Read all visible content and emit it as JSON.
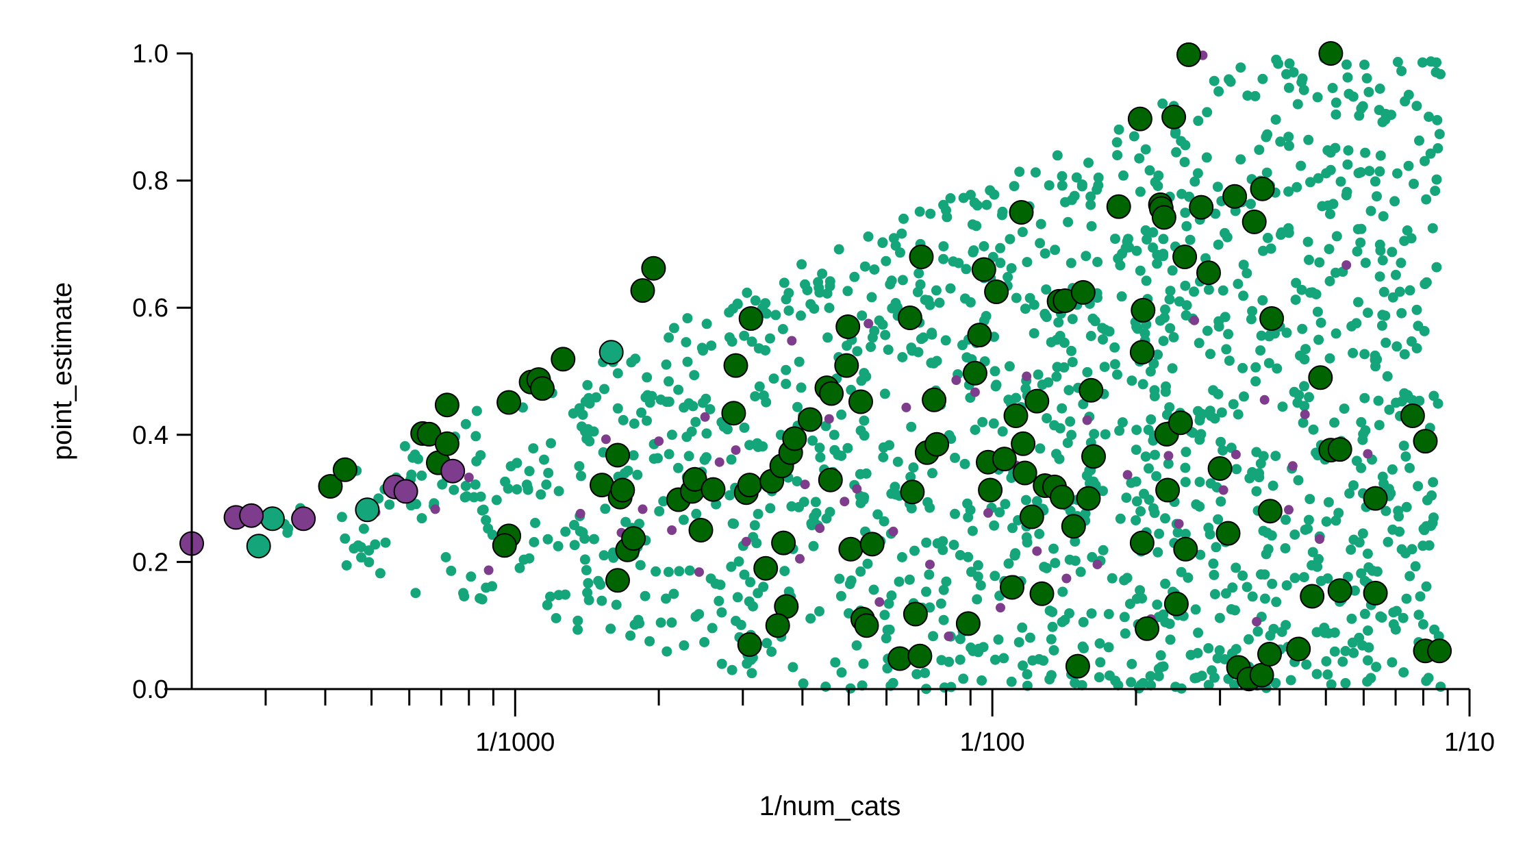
{
  "chart_data": {
    "type": "scatter",
    "title": "",
    "xlabel": "1/num_cats",
    "ylabel": "point_estimate",
    "xscale": "log",
    "xlim": [
      0.00021,
      0.1
    ],
    "ylim": [
      0,
      1
    ],
    "xticks": [
      {
        "value": 0.001,
        "label": "1/1000"
      },
      {
        "value": 0.01,
        "label": "1/100"
      },
      {
        "value": 0.1,
        "label": "1/10"
      }
    ],
    "yticks": [
      {
        "value": 0,
        "label": "0.0"
      },
      {
        "value": 0.2,
        "label": "0.2"
      },
      {
        "value": 0.4,
        "label": "0.4"
      },
      {
        "value": 0.6,
        "label": "0.6"
      },
      {
        "value": 0.8,
        "label": "0.8"
      },
      {
        "value": 1,
        "label": "1.0"
      }
    ],
    "grid": false,
    "legend": "none",
    "colors": {
      "light_green": "#14a57a",
      "purple": "#7d3c8c",
      "dark_green": "#006400",
      "edge": "#000000"
    },
    "series": [
      {
        "role": "large-dark-green-outlined",
        "color": "#006400",
        "points": [
          [
            0.00072,
            0.447
          ],
          [
            0.00064,
            0.402
          ],
          [
            0.00066,
            0.401
          ],
          [
            0.00069,
            0.356
          ],
          [
            0.00072,
            0.386
          ],
          [
            0.00041,
            0.319
          ],
          [
            0.00044,
            0.345
          ],
          [
            0.00097,
            0.451
          ],
          [
            0.00108,
            0.483
          ],
          [
            0.00112,
            0.487
          ],
          [
            0.00114,
            0.473
          ],
          [
            0.00126,
            0.519
          ],
          [
            0.00185,
            0.627
          ],
          [
            0.00195,
            0.662
          ],
          [
            0.00097,
            0.241
          ],
          [
            0.00095,
            0.226
          ],
          [
            0.00152,
            0.321
          ],
          [
            0.00164,
            0.368
          ],
          [
            0.00166,
            0.302
          ],
          [
            0.00168,
            0.313
          ],
          [
            0.00172,
            0.219
          ],
          [
            0.00177,
            0.237
          ],
          [
            0.00164,
            0.171
          ],
          [
            0.0022,
            0.298
          ],
          [
            0.00235,
            0.311
          ],
          [
            0.00238,
            0.33
          ],
          [
            0.00245,
            0.25
          ],
          [
            0.0026,
            0.314
          ],
          [
            0.0029,
            0.509
          ],
          [
            0.00287,
            0.434
          ],
          [
            0.00305,
            0.309
          ],
          [
            0.0031,
            0.321
          ],
          [
            0.00312,
            0.583
          ],
          [
            0.0031,
            0.07
          ],
          [
            0.00335,
            0.19
          ],
          [
            0.00345,
            0.327
          ],
          [
            0.00362,
            0.351
          ],
          [
            0.00365,
            0.23
          ],
          [
            0.00378,
            0.372
          ],
          [
            0.00385,
            0.394
          ],
          [
            0.0037,
            0.13
          ],
          [
            0.00355,
            0.1
          ],
          [
            0.00415,
            0.424
          ],
          [
            0.0045,
            0.474
          ],
          [
            0.0046,
            0.465
          ],
          [
            0.00458,
            0.329
          ],
          [
            0.00495,
            0.509
          ],
          [
            0.00498,
            0.57
          ],
          [
            0.00505,
            0.22
          ],
          [
            0.0053,
            0.452
          ],
          [
            0.00535,
            0.11
          ],
          [
            0.00545,
            0.1
          ],
          [
            0.0056,
            0.228
          ],
          [
            0.0064,
            0.048
          ],
          [
            0.00672,
            0.584
          ],
          [
            0.0068,
            0.31
          ],
          [
            0.0069,
            0.118
          ],
          [
            0.00705,
            0.052
          ],
          [
            0.0071,
            0.68
          ],
          [
            0.0073,
            0.372
          ],
          [
            0.00755,
            0.455
          ],
          [
            0.00765,
            0.385
          ],
          [
            0.0089,
            0.103
          ],
          [
            0.0092,
            0.497
          ],
          [
            0.0094,
            0.557
          ],
          [
            0.0096,
            0.66
          ],
          [
            0.0098,
            0.357
          ],
          [
            0.0099,
            0.313
          ],
          [
            0.0102,
            0.625
          ],
          [
            0.0106,
            0.362
          ],
          [
            0.011,
            0.16
          ],
          [
            0.0112,
            0.43
          ],
          [
            0.0115,
            0.75
          ],
          [
            0.0116,
            0.386
          ],
          [
            0.0117,
            0.34
          ],
          [
            0.0121,
            0.271
          ],
          [
            0.0124,
            0.453
          ],
          [
            0.0127,
            0.15
          ],
          [
            0.0129,
            0.32
          ],
          [
            0.0135,
            0.318
          ],
          [
            0.0138,
            0.61
          ],
          [
            0.014,
            0.302
          ],
          [
            0.0142,
            0.611
          ],
          [
            0.0148,
            0.256
          ],
          [
            0.0151,
            0.036
          ],
          [
            0.0155,
            0.624
          ],
          [
            0.0159,
            0.3
          ],
          [
            0.0161,
            0.47
          ],
          [
            0.0163,
            0.366
          ],
          [
            0.0184,
            0.759
          ],
          [
            0.0204,
            0.897
          ],
          [
            0.0206,
            0.53
          ],
          [
            0.0207,
            0.596
          ],
          [
            0.0206,
            0.23
          ],
          [
            0.0211,
            0.095
          ],
          [
            0.0225,
            0.762
          ],
          [
            0.0226,
            0.756
          ],
          [
            0.0229,
            0.742
          ],
          [
            0.0232,
            0.401
          ],
          [
            0.0233,
            0.313
          ],
          [
            0.024,
            0.9
          ],
          [
            0.0243,
            0.134
          ],
          [
            0.0248,
            0.419
          ],
          [
            0.0253,
            0.68
          ],
          [
            0.0254,
            0.22
          ],
          [
            0.0258,
            0.998
          ],
          [
            0.0274,
            0.758
          ],
          [
            0.0284,
            0.655
          ],
          [
            0.03,
            0.347
          ],
          [
            0.0312,
            0.245
          ],
          [
            0.0322,
            0.775
          ],
          [
            0.0328,
            0.034
          ],
          [
            0.0345,
            0.016
          ],
          [
            0.0354,
            0.735
          ],
          [
            0.0367,
            0.022
          ],
          [
            0.0368,
            0.787
          ],
          [
            0.0381,
            0.055
          ],
          [
            0.0382,
            0.28
          ],
          [
            0.0385,
            0.583
          ],
          [
            0.0438,
            0.063
          ],
          [
            0.0468,
            0.146
          ],
          [
            0.0487,
            0.49
          ],
          [
            0.0512,
            0.376
          ],
          [
            0.0512,
            1.0
          ],
          [
            0.0535,
            0.377
          ],
          [
            0.0535,
            0.155
          ],
          [
            0.0635,
            0.3
          ],
          [
            0.0635,
            0.151
          ],
          [
            0.076,
            0.43
          ],
          [
            0.0808,
            0.39
          ],
          [
            0.0808,
            0.06
          ],
          [
            0.0865,
            0.06
          ]
        ]
      },
      {
        "role": "large-light-green-outlined",
        "color": "#14a57a",
        "points": [
          [
            0.00031,
            0.268
          ],
          [
            0.00029,
            0.225
          ],
          [
            0.00049,
            0.282
          ],
          [
            0.00159,
            0.53
          ]
        ]
      },
      {
        "role": "large-purple-outlined",
        "color": "#7d3c8c",
        "points": [
          [
            0.00021,
            0.229
          ],
          [
            0.00026,
            0.27
          ],
          [
            0.00028,
            0.273
          ],
          [
            0.00036,
            0.268
          ],
          [
            0.00056,
            0.318
          ],
          [
            0.00059,
            0.311
          ],
          [
            0.00074,
            0.343
          ]
        ]
      },
      {
        "role": "small-light-green",
        "color": "#14a57a",
        "n": 1500,
        "seed": 12345
      },
      {
        "role": "small-purple",
        "color": "#7d3c8c",
        "points": [
          [
            0.00051,
            0.278
          ],
          [
            0.00068,
            0.283
          ],
          [
            0.0008,
            0.333
          ],
          [
            0.00088,
            0.187
          ],
          [
            0.00137,
            0.276
          ],
          [
            0.00155,
            0.393
          ],
          [
            0.00167,
            0.246
          ],
          [
            0.00185,
            0.283
          ],
          [
            0.002,
            0.39
          ],
          [
            0.00213,
            0.25
          ],
          [
            0.0025,
            0.428
          ],
          [
            0.00268,
            0.357
          ],
          [
            0.00243,
            0.184
          ],
          [
            0.0029,
            0.376
          ],
          [
            0.00305,
            0.232
          ],
          [
            0.0038,
            0.548
          ],
          [
            0.00395,
            0.205
          ],
          [
            0.00405,
            0.322
          ],
          [
            0.00435,
            0.253
          ],
          [
            0.00455,
            0.425
          ],
          [
            0.0049,
            0.295
          ],
          [
            0.0052,
            0.315
          ],
          [
            0.0055,
            0.575
          ],
          [
            0.0058,
            0.137
          ],
          [
            0.0062,
            0.248
          ],
          [
            0.0066,
            0.443
          ],
          [
            0.0074,
            0.196
          ],
          [
            0.0081,
            0.083
          ],
          [
            0.0084,
            0.486
          ],
          [
            0.0092,
            0.467
          ],
          [
            0.0098,
            0.277
          ],
          [
            0.0104,
            0.128
          ],
          [
            0.0112,
            0.352
          ],
          [
            0.0118,
            0.492
          ],
          [
            0.0124,
            0.217
          ],
          [
            0.0143,
            0.174
          ],
          [
            0.0158,
            0.423
          ],
          [
            0.0166,
            0.196
          ],
          [
            0.0192,
            0.337
          ],
          [
            0.0215,
            0.11
          ],
          [
            0.0234,
            0.367
          ],
          [
            0.0246,
            0.26
          ],
          [
            0.0265,
            0.58
          ],
          [
            0.0276,
            0.997
          ],
          [
            0.0305,
            0.313
          ],
          [
            0.0324,
            0.369
          ],
          [
            0.0358,
            0.106
          ],
          [
            0.0372,
            0.455
          ],
          [
            0.0418,
            0.282
          ],
          [
            0.0426,
            0.351
          ],
          [
            0.0452,
            0.432
          ],
          [
            0.0485,
            0.236
          ],
          [
            0.0552,
            0.667
          ],
          [
            0.0612,
            0.37
          ]
        ]
      }
    ]
  }
}
